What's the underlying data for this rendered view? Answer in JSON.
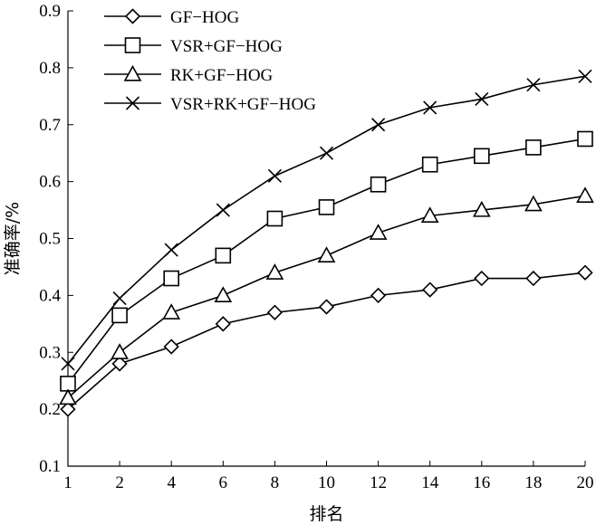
{
  "chart_data": {
    "type": "line",
    "xlabel": "排名",
    "ylabel": "准确率/%",
    "categories": [
      "1",
      "2",
      "4",
      "6",
      "8",
      "10",
      "12",
      "14",
      "16",
      "18",
      "20"
    ],
    "ylim": [
      0.1,
      0.9
    ],
    "yticks": [
      "0.1",
      "0.2",
      "0.3",
      "0.4",
      "0.5",
      "0.6",
      "0.7",
      "0.8",
      "0.9"
    ],
    "ytick_values": [
      0.1,
      0.2,
      0.3,
      0.4,
      0.5,
      0.6,
      0.7,
      0.8,
      0.9
    ],
    "legend_position": "top-left",
    "series": [
      {
        "name": "GF−HOG",
        "marker": "diamond",
        "values": [
          0.2,
          0.28,
          0.31,
          0.35,
          0.37,
          0.38,
          0.4,
          0.41,
          0.43,
          0.43,
          0.44
        ]
      },
      {
        "name": "VSR+GF−HOG",
        "marker": "square",
        "values": [
          0.245,
          0.365,
          0.43,
          0.47,
          0.535,
          0.555,
          0.595,
          0.63,
          0.645,
          0.66,
          0.675
        ]
      },
      {
        "name": "RK+GF−HOG",
        "marker": "triangle",
        "values": [
          0.22,
          0.3,
          0.37,
          0.4,
          0.44,
          0.47,
          0.51,
          0.54,
          0.55,
          0.56,
          0.575
        ]
      },
      {
        "name": "VSR+RK+GF−HOG",
        "marker": "x",
        "values": [
          0.28,
          0.395,
          0.48,
          0.55,
          0.61,
          0.65,
          0.7,
          0.73,
          0.745,
          0.77,
          0.785
        ]
      }
    ]
  }
}
